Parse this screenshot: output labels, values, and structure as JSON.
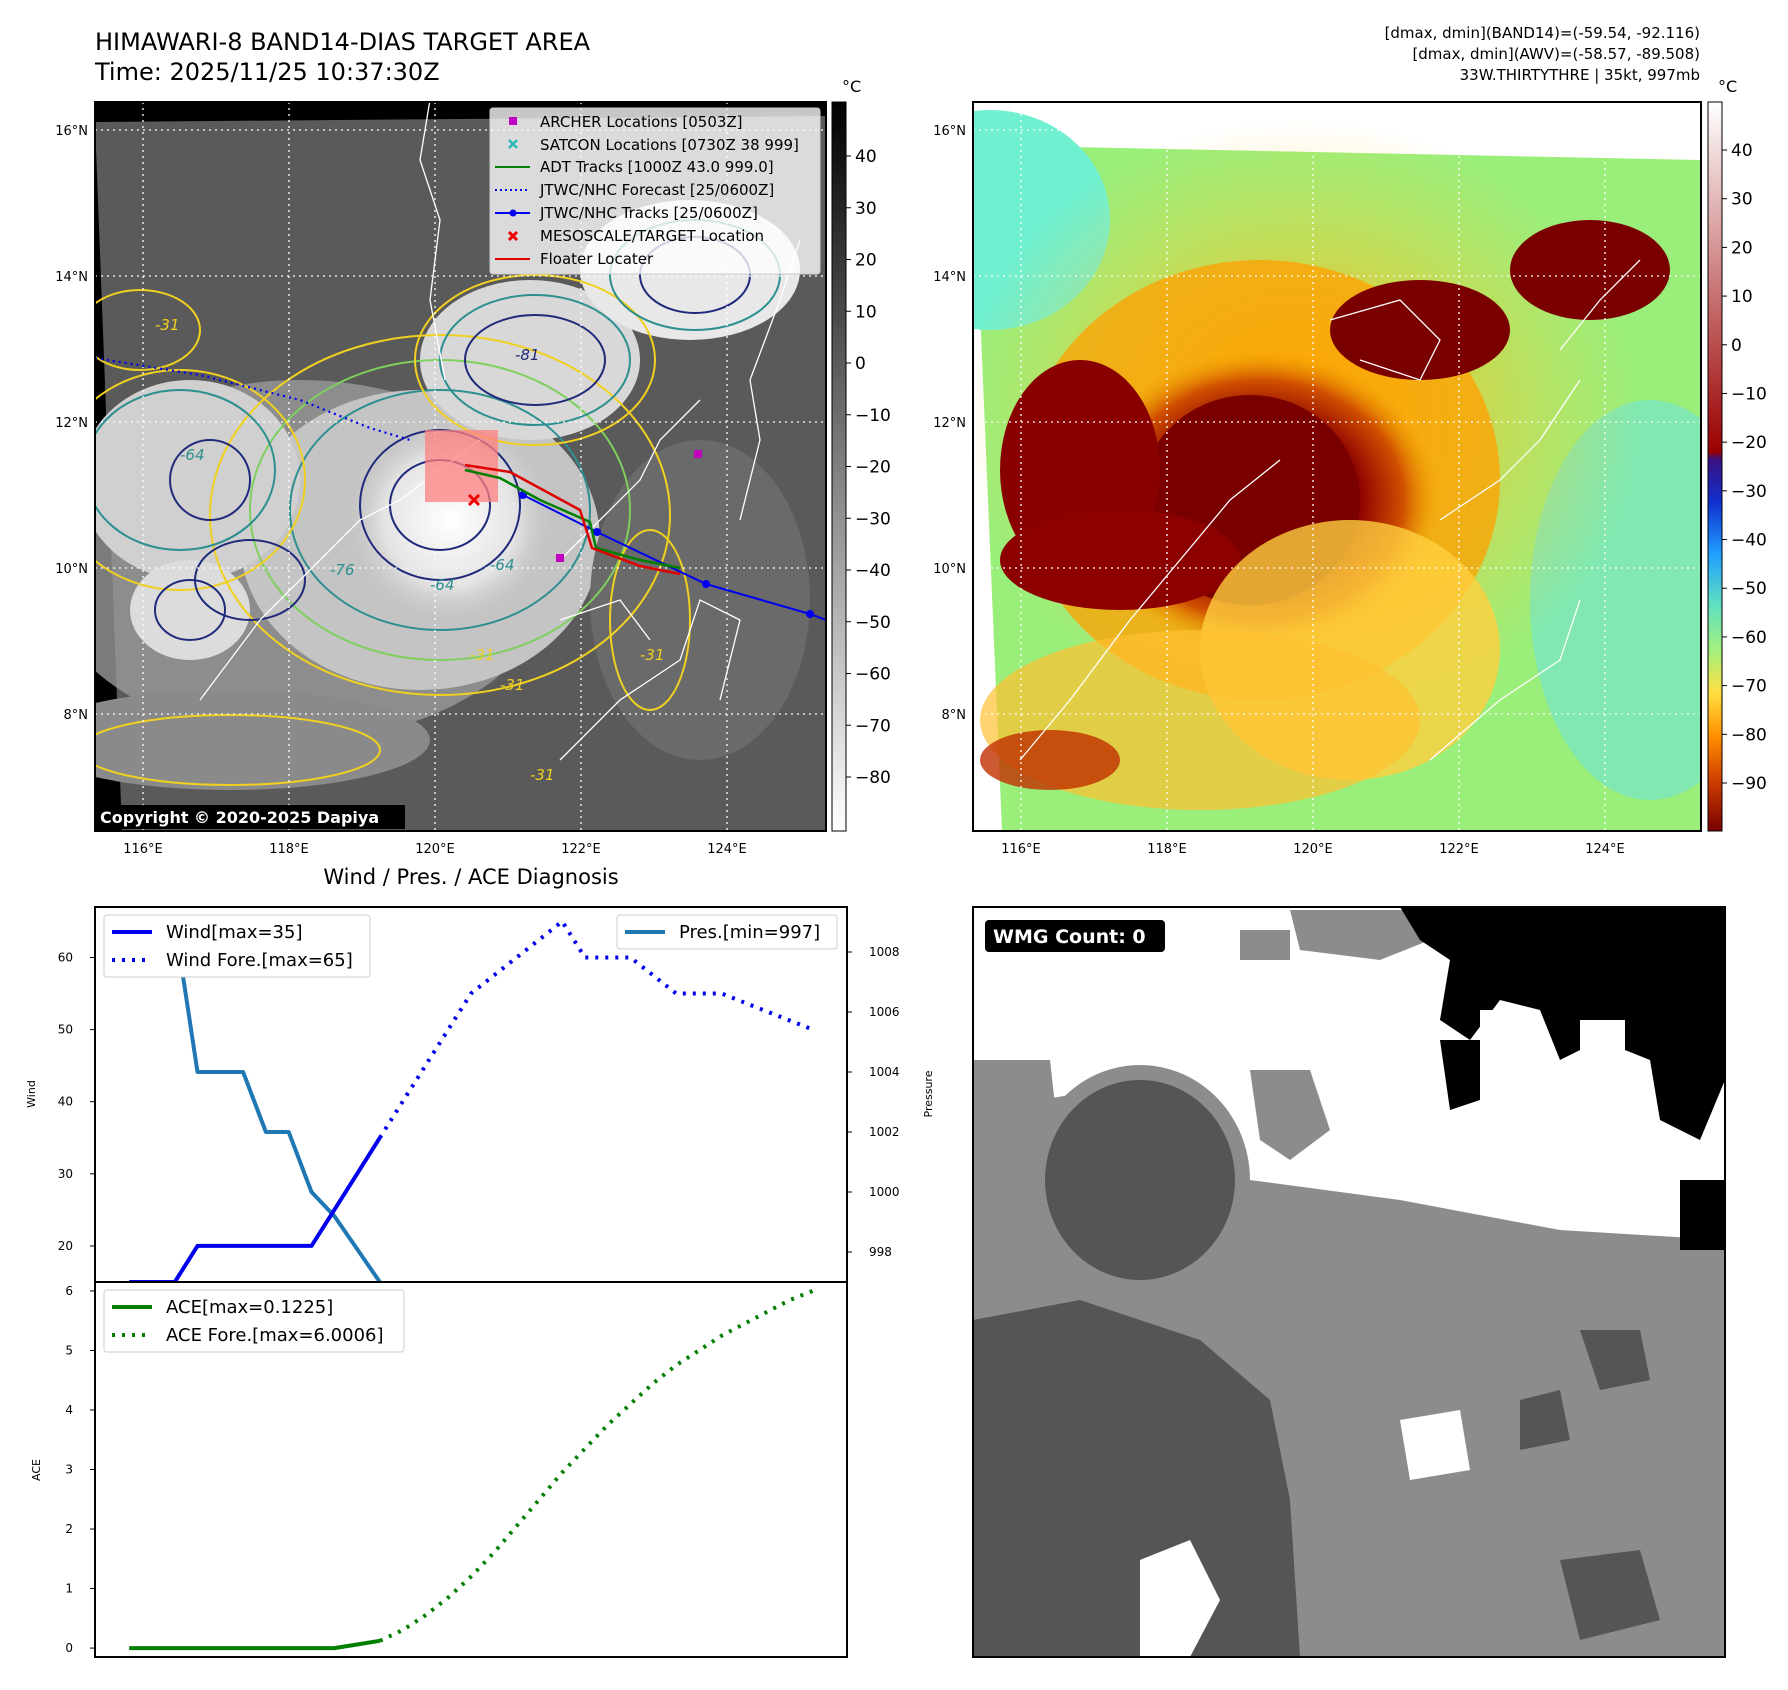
{
  "header": {
    "title": "HIMAWARI-8 BAND14-DIAS TARGET AREA",
    "time": "Time: 2025/11/25 10:37:30Z",
    "info_lines": [
      "[dmax, dmin](BAND14)=(-59.54, -92.116)",
      "[dmax, dmin](AWV)=(-58.57, -89.508)",
      "33W.THIRTYTHRE | 35kt, 997mb"
    ]
  },
  "map_axes": {
    "lon_ticks": [
      "116°E",
      "118°E",
      "120°E",
      "122°E",
      "124°E"
    ],
    "lat_ticks": [
      "16°N",
      "14°N",
      "12°N",
      "10°N",
      "8°N"
    ]
  },
  "ir_panel": {
    "colorbar_unit": "°C",
    "colorbar_ticks": [
      40,
      30,
      20,
      10,
      0,
      -10,
      -20,
      -30,
      -40,
      -50,
      -60,
      -70,
      -80
    ],
    "contour_labels": [
      "-31",
      "-64",
      "-64",
      "-76",
      "-81",
      "-64",
      "-31",
      "-31",
      "-31",
      "-31"
    ],
    "copyright": "Copyright © 2020-2025 Dapiya",
    "legend": [
      {
        "label": "ARCHER Locations [0503Z]",
        "color": "#c000c0",
        "marker": "square"
      },
      {
        "label": "SATCON Locations [0730Z 38 999]",
        "color": "#2bb7b7",
        "marker": "x"
      },
      {
        "label": "ADT Tracks [1000Z 43.0 999.0]",
        "color": "#007f00",
        "marker": "line"
      },
      {
        "label": "JTWC/NHC Forecast [25/0600Z]",
        "color": "#0000ee",
        "marker": "dotted"
      },
      {
        "label": "JTWC/NHC Tracks [25/0600Z]",
        "color": "#0000ee",
        "marker": "line-dot"
      },
      {
        "label": "MESOSCALE/TARGET Location",
        "color": "#ee0000",
        "marker": "x"
      },
      {
        "label": "Floater Locater",
        "color": "#dd0000",
        "marker": "line"
      }
    ]
  },
  "awv_panel": {
    "colorbar_unit": "°C",
    "colorbar_ticks": [
      40,
      30,
      20,
      10,
      0,
      -10,
      -20,
      -30,
      -40,
      -50,
      -60,
      -70,
      -80,
      -90
    ]
  },
  "diagnosis": {
    "title": "Wind / Pres. / ACE Diagnosis",
    "wind_ylabel": "Wind",
    "pres_ylabel": "Pressure",
    "ace_ylabel": "ACE",
    "wind_legend": [
      "Wind[max=35]",
      "Wind Fore.[max=65]"
    ],
    "pres_legend": [
      "Pres.[min=997]"
    ],
    "ace_legend": [
      "ACE[max=0.1225]",
      "ACE Fore.[max=6.0006]"
    ]
  },
  "wmg_panel": {
    "badge": "WMG Count: 0"
  },
  "chart_data": [
    {
      "type": "line",
      "name": "wind",
      "x": [
        0,
        1,
        2,
        3,
        4,
        5,
        6,
        7,
        8,
        9,
        10,
        11,
        12,
        13,
        14,
        15,
        16,
        17,
        18,
        19,
        20,
        21,
        22,
        23,
        24,
        25,
        26,
        27,
        28,
        29,
        30
      ],
      "ylim": [
        15,
        67
      ],
      "yticks": [
        20,
        30,
        40,
        50,
        60
      ],
      "series": [
        {
          "name": "Wind[max=35]",
          "style": "solid",
          "color": "#0000ee",
          "x": [
            0,
            2,
            3,
            7,
            8,
            9,
            10,
            11
          ],
          "values": [
            15,
            15,
            20,
            20,
            20,
            25,
            30,
            35
          ]
        },
        {
          "name": "Wind Fore.[max=65]",
          "style": "dotted",
          "color": "#0000ee",
          "x": [
            11,
            12,
            13,
            14,
            15,
            16,
            17,
            18,
            19,
            20,
            21,
            22,
            23,
            24,
            25,
            26,
            27,
            28,
            29,
            30
          ],
          "values": [
            35,
            40,
            45,
            50,
            55,
            57.5,
            60,
            62.5,
            65,
            60,
            60,
            60,
            57.5,
            55,
            55,
            55,
            53.75,
            52.5,
            51.25,
            50
          ]
        }
      ]
    },
    {
      "type": "line",
      "name": "pressure",
      "ylim": [
        997,
        1009.5
      ],
      "yticks": [
        998,
        1000,
        1002,
        1004,
        1006,
        1008
      ],
      "series": [
        {
          "name": "Pres.[min=997]",
          "style": "solid",
          "color": "#1f77b4",
          "x": [
            1,
            2,
            3,
            4,
            5,
            6,
            7,
            8,
            9,
            10,
            11
          ],
          "values": [
            1009,
            1009,
            1004,
            1004,
            1004,
            1002,
            1002,
            1000,
            999.2,
            998.1,
            997
          ]
        }
      ]
    },
    {
      "type": "line",
      "name": "ace",
      "ylim": [
        -0.15,
        6.15
      ],
      "yticks": [
        0,
        1,
        2,
        3,
        4,
        5,
        6
      ],
      "series": [
        {
          "name": "ACE[max=0.1225]",
          "style": "solid",
          "color": "#007f00",
          "x": [
            0,
            1,
            2,
            3,
            4,
            5,
            6,
            7,
            8,
            9,
            10,
            11
          ],
          "values": [
            0,
            0,
            0,
            0,
            0,
            0,
            0,
            0,
            0,
            0,
            0.06,
            0.1225
          ]
        },
        {
          "name": "ACE Fore.[max=6.0006]",
          "style": "dotted",
          "color": "#007f00",
          "x": [
            11,
            12,
            13,
            14,
            15,
            16,
            17,
            18,
            19,
            20,
            21,
            22,
            23,
            24,
            25,
            26,
            27,
            28,
            29,
            30
          ],
          "values": [
            0.1225,
            0.3,
            0.55,
            0.85,
            1.2,
            1.6,
            2.05,
            2.5,
            2.95,
            3.35,
            3.75,
            4.1,
            4.45,
            4.75,
            5.0,
            5.25,
            5.45,
            5.65,
            5.85,
            6.0006
          ]
        }
      ]
    }
  ]
}
